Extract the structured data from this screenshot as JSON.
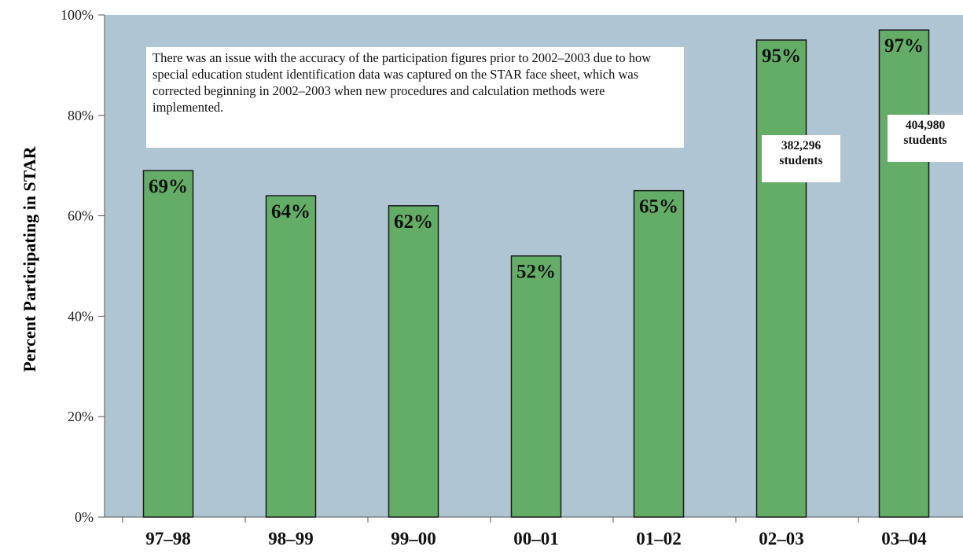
{
  "chart_data": {
    "type": "bar",
    "title": "",
    "xlabel": "",
    "ylabel": "Percent Participating in STAR",
    "ylim": [
      0,
      100
    ],
    "yticks": [
      "0%",
      "20%",
      "40%",
      "60%",
      "80%",
      "100%"
    ],
    "categories": [
      "97–98",
      "98–99",
      "99–00",
      "00–01",
      "01–02",
      "02–03",
      "03–04"
    ],
    "values": [
      69,
      64,
      62,
      52,
      65,
      95,
      97
    ],
    "value_labels": [
      "69%",
      "64%",
      "62%",
      "52%",
      "65%",
      "95%",
      "97%"
    ],
    "grid": false,
    "colors": {
      "plot_background": "#afc5d3",
      "bar_fill": "#64ad66",
      "bar_stroke": "#1a1a1a"
    },
    "annotations": {
      "note": "There was an issue with the accuracy of the participation figures prior to 2002–2003 due to how special education student identification data was captured on the STAR face sheet, which was corrected beginning in 2002–2003 when new procedures and calculation methods were implemented.",
      "student_counts": [
        {
          "category": "02–03",
          "number": "382,296",
          "unit": "students"
        },
        {
          "category": "03–04",
          "number": "404,980",
          "unit": "students"
        }
      ]
    }
  }
}
